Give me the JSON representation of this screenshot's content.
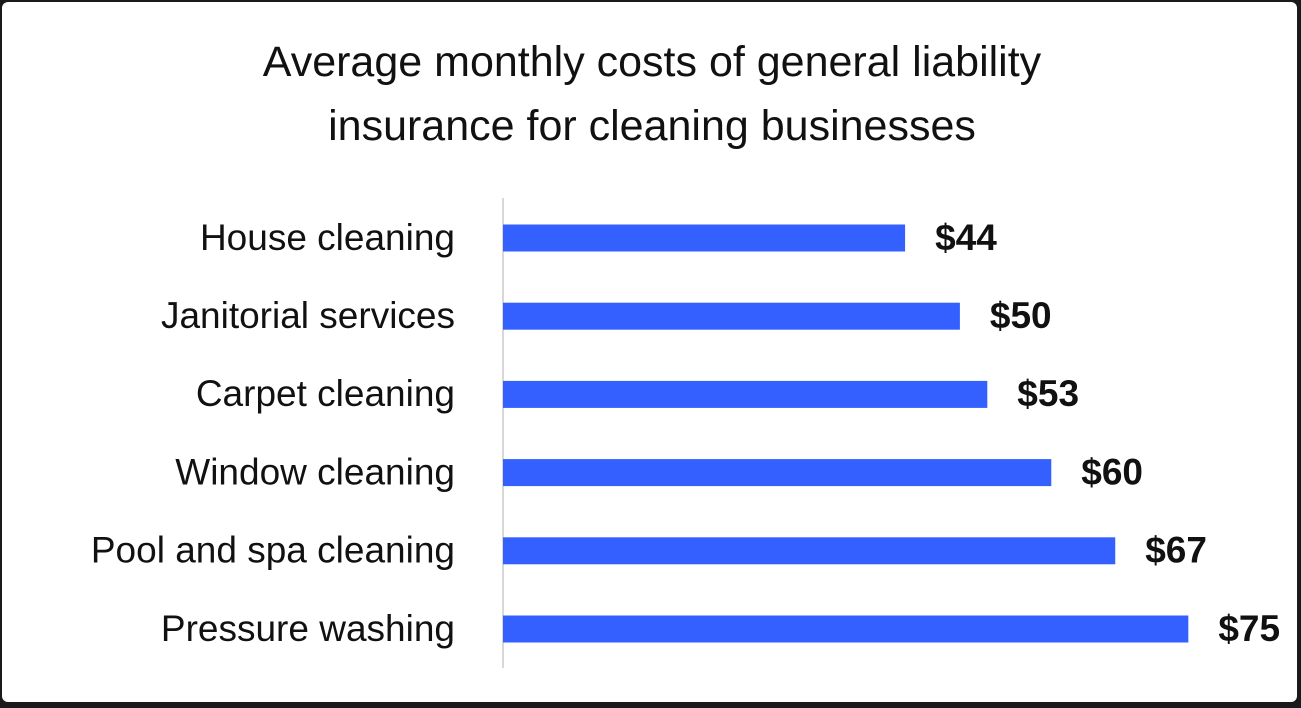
{
  "chart_data": {
    "type": "bar",
    "orientation": "horizontal",
    "title": "Average monthly costs of general liability insurance for cleaning businesses",
    "categories": [
      "House cleaning",
      "Janitorial services",
      "Carpet cleaning",
      "Window cleaning",
      "Pool and spa cleaning",
      "Pressure washing"
    ],
    "values": [
      44,
      50,
      53,
      60,
      67,
      75
    ],
    "value_labels": [
      "$44",
      "$50",
      "$53",
      "$60",
      "$67",
      "$75"
    ],
    "color": "#3360ff",
    "xlim": [
      0,
      87
    ]
  }
}
